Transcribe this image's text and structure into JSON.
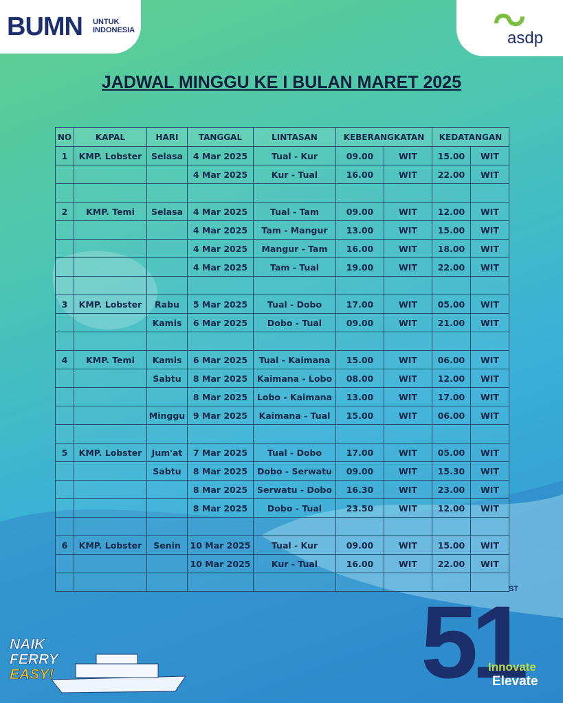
{
  "header": {
    "brand_left": "BUMN",
    "brand_left_sub": "UNTUK INDONESIA",
    "brand_right": "asdp"
  },
  "title": "JADWAL MINGGU KE I BULAN MARET 2025",
  "table": {
    "columns": {
      "no": "NO",
      "kapal": "KAPAL",
      "hari": "HARI",
      "tanggal": "TANGGAL",
      "lintasan": "LINTASAN",
      "berangkat": "KEBERANGKATAN",
      "tiba": "KEDATANGAN"
    },
    "groups": [
      {
        "no": "1",
        "kapal": "KMP. Lobster",
        "rows": [
          {
            "hari": "Selasa",
            "tanggal": "4 Mar 2025",
            "lintasan": "Tual - Kur",
            "berangkat": "09.00",
            "berangkat_zona": "WIT",
            "tiba": "15.00",
            "tiba_zona": "WIT"
          },
          {
            "tanggal": "4 Mar 2025",
            "lintasan": "Kur - Tual",
            "berangkat": "16.00",
            "berangkat_zona": "WIT",
            "tiba": "22.00",
            "tiba_zona": "WIT"
          }
        ]
      },
      {
        "no": "2",
        "kapal": "KMP. Temi",
        "rows": [
          {
            "hari": "Selasa",
            "tanggal": "4 Mar 2025",
            "lintasan": "Tual - Tam",
            "berangkat": "09.00",
            "berangkat_zona": "WIT",
            "tiba": "12.00",
            "tiba_zona": "WIT"
          },
          {
            "tanggal": "4 Mar 2025",
            "lintasan": "Tam - Mangur",
            "berangkat": "13.00",
            "berangkat_zona": "WIT",
            "tiba": "15.00",
            "tiba_zona": "WIT"
          },
          {
            "tanggal": "4 Mar 2025",
            "lintasan": "Mangur - Tam",
            "berangkat": "16.00",
            "berangkat_zona": "WIT",
            "tiba": "18.00",
            "tiba_zona": "WIT"
          },
          {
            "tanggal": "4 Mar 2025",
            "lintasan": "Tam - Tual",
            "berangkat": "19.00",
            "berangkat_zona": "WIT",
            "tiba": "22.00",
            "tiba_zona": "WIT"
          }
        ]
      },
      {
        "no": "3",
        "kapal": "KMP. Lobster",
        "rows": [
          {
            "hari": "Rabu",
            "tanggal": "5 Mar 2025",
            "lintasan": "Tual - Dobo",
            "berangkat": "17.00",
            "berangkat_zona": "WIT",
            "tiba": "05.00",
            "tiba_zona": "WIT"
          },
          {
            "hari": "Kamis",
            "tanggal": "6 Mar 2025",
            "lintasan": "Dobo - Tual",
            "berangkat": "09.00",
            "berangkat_zona": "WIT",
            "tiba": "21.00",
            "tiba_zona": "WIT"
          }
        ]
      },
      {
        "no": "4",
        "kapal": "KMP. Temi",
        "rows": [
          {
            "hari": "Kamis",
            "tanggal": "6 Mar 2025",
            "lintasan": "Tual - Kaimana",
            "berangkat": "15.00",
            "berangkat_zona": "WIT",
            "tiba": "06.00",
            "tiba_zona": "WIT"
          },
          {
            "hari": "Sabtu",
            "tanggal": "8 Mar 2025",
            "lintasan": "Kaimana - Lobo",
            "berangkat": "08.00",
            "berangkat_zona": "WIT",
            "tiba": "12.00",
            "tiba_zona": "WIT"
          },
          {
            "tanggal": "8 Mar 2025",
            "lintasan": "Lobo - Kaimana",
            "berangkat": "13.00",
            "berangkat_zona": "WIT",
            "tiba": "17.00",
            "tiba_zona": "WIT"
          },
          {
            "hari": "Minggu",
            "tanggal": "9 Mar 2025",
            "lintasan": "Kaimana - Tual",
            "berangkat": "15.00",
            "berangkat_zona": "WIT",
            "tiba": "06.00",
            "tiba_zona": "WIT"
          }
        ]
      },
      {
        "no": "5",
        "kapal": "KMP. Lobster",
        "rows": [
          {
            "hari": "Jum'at",
            "tanggal": "7 Mar 2025",
            "lintasan": "Tual - Dobo",
            "berangkat": "17.00",
            "berangkat_zona": "WIT",
            "tiba": "05.00",
            "tiba_zona": "WIT"
          },
          {
            "hari": "Sabtu",
            "tanggal": "8 Mar 2025",
            "lintasan": "Dobo - Serwatu",
            "berangkat": "09.00",
            "berangkat_zona": "WIT",
            "tiba": "15.30",
            "tiba_zona": "WIT"
          },
          {
            "tanggal": "8 Mar 2025",
            "lintasan": "Serwatu - Dobo",
            "berangkat": "16.30",
            "berangkat_zona": "WIT",
            "tiba": "23.00",
            "tiba_zona": "WIT"
          },
          {
            "tanggal": "8 Mar 2025",
            "lintasan": "Dobo - Tual",
            "berangkat": "23.50",
            "berangkat_zona": "WIT",
            "tiba": "12.00",
            "tiba_zona": "WIT"
          }
        ]
      },
      {
        "no": "6",
        "kapal": "KMP. Lobster",
        "rows": [
          {
            "hari": "Senin",
            "tanggal": "10 Mar 2025",
            "lintasan": "Tual - Kur",
            "berangkat": "09.00",
            "berangkat_zona": "WIT",
            "tiba": "15.00",
            "tiba_zona": "WIT"
          },
          {
            "tanggal": "10 Mar 2025",
            "lintasan": "Kur - Tual",
            "berangkat": "16.00",
            "berangkat_zona": "WIT",
            "tiba": "22.00",
            "tiba_zona": "WIT"
          }
        ]
      }
    ]
  },
  "footer": {
    "slogan_1": "NAIK",
    "slogan_2": "FERRY",
    "slogan_3": "EASY!",
    "anniversary": "51",
    "anniversary_suffix": "ST",
    "theme_1": "Innovate",
    "theme_2": "Elevate"
  }
}
